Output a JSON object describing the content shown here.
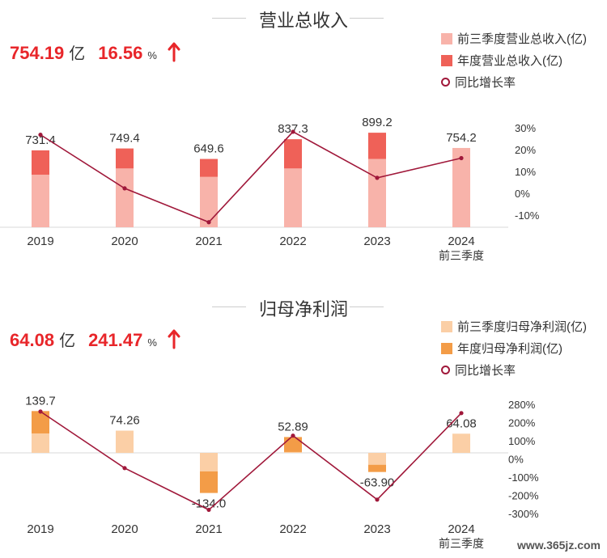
{
  "charts": [
    {
      "title": "营业总收入",
      "headline_value": "754.19",
      "headline_unit": "亿",
      "headline_pct": "16.56",
      "headline_pct_unit": "%",
      "arrow_icon": "up-arrow-icon",
      "legend": [
        "前三季度营业总收入(亿)",
        "年度营业总收入(亿)",
        "同比增长率"
      ]
    },
    {
      "title": "归母净利润",
      "headline_value": "64.08",
      "headline_unit": "亿",
      "headline_pct": "241.47",
      "headline_pct_unit": "%",
      "arrow_icon": "up-arrow-icon",
      "legend": [
        "前三季度归母净利润(亿)",
        "年度归母净利润(亿)",
        "同比增长率"
      ]
    }
  ],
  "chart_data": [
    {
      "type": "bar",
      "title": "营业总收入",
      "categories": [
        "2019",
        "2020",
        "2021",
        "2022",
        "2023",
        "2024"
      ],
      "category_sublabels": [
        "",
        "",
        "",
        "",
        "",
        "前三季度"
      ],
      "series": [
        {
          "name": "前三季度营业总收入(亿)",
          "values": [
            500,
            560,
            480,
            560,
            650,
            754.2
          ],
          "color": "#f8b3aa"
        },
        {
          "name": "年度营业总收入(亿)",
          "values": [
            731.4,
            749.4,
            649.6,
            837.3,
            899.2,
            null
          ],
          "color": "#ef6158"
        }
      ],
      "data_labels": [
        "731.4",
        "749.4",
        "649.6",
        "837.3",
        "899.2",
        "754.2"
      ],
      "line": {
        "name": "同比增长率",
        "values": [
          27.5,
          2.5,
          -13.3,
          28.9,
          7.4,
          16.6
        ],
        "color": "#a0183a"
      },
      "y_right_ticks": [
        "30%",
        "20%",
        "10%",
        "0%",
        "-10%"
      ],
      "y_right_range": [
        -10,
        30
      ],
      "y_left_range": [
        0,
        1000
      ]
    },
    {
      "type": "bar",
      "title": "归母净利润",
      "categories": [
        "2019",
        "2020",
        "2021",
        "2022",
        "2023",
        "2024"
      ],
      "category_sublabels": [
        "",
        "",
        "",
        "",
        "",
        "前三季度"
      ],
      "series": [
        {
          "name": "前三季度归母净利润(亿)",
          "values": [
            65,
            74.26,
            -62,
            3,
            -40,
            64.08
          ],
          "color": "#fbcfa6"
        },
        {
          "name": "年度归母净利润(亿)",
          "values": [
            139.7,
            null,
            -134.0,
            52.89,
            -63.9,
            null
          ],
          "color": "#f39c47"
        }
      ],
      "data_labels": [
        "139.7",
        "74.26",
        "-134.0",
        "52.89",
        "-63.90",
        "64.08"
      ],
      "line": {
        "name": "同比增长率",
        "values": [
          250,
          -55,
          -280,
          120,
          -225,
          241.5
        ],
        "color": "#a0183a"
      },
      "y_right_ticks": [
        "280%",
        "200%",
        "100%",
        "0%",
        "-100%",
        "-200%",
        "-300%"
      ],
      "y_right_range": [
        -300,
        280
      ],
      "y_left_range": [
        -200,
        200
      ]
    }
  ]
}
